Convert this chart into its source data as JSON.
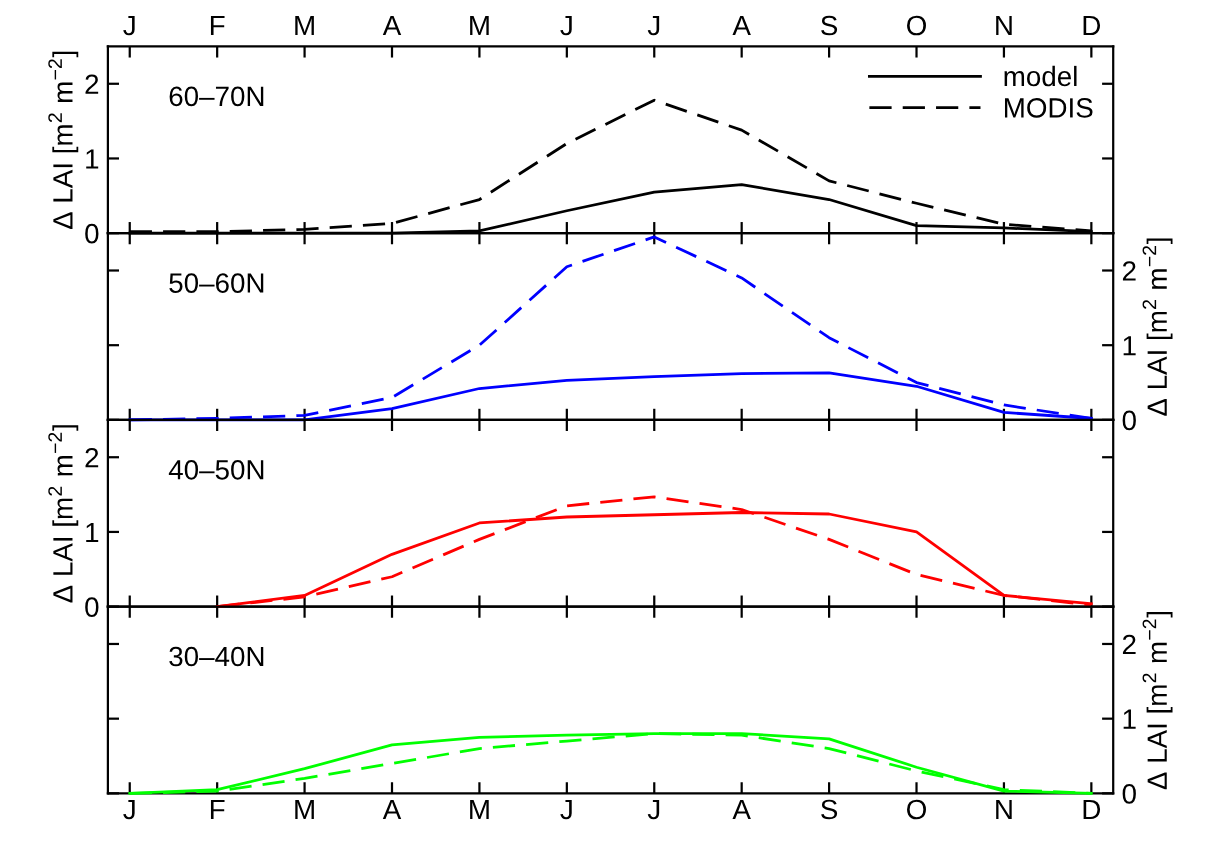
{
  "chart_data": [
    {
      "type": "line",
      "title": "60–70N",
      "ylabel": "Δ LAI [m$^{2}$ m$^{−2}$]",
      "categories": [
        "J",
        "F",
        "M",
        "A",
        "M",
        "J",
        "J",
        "A",
        "S",
        "O",
        "N",
        "D"
      ],
      "ylim": [
        0,
        2.5
      ],
      "yticks": [
        0,
        1,
        2
      ],
      "legend": "top right",
      "series": [
        {
          "name": "model",
          "color": "#000000",
          "line_style": "solid",
          "values": [
            0,
            0,
            0,
            0,
            0.03,
            0.3,
            0.55,
            0.65,
            0.45,
            0.1,
            0.07,
            0.02
          ]
        },
        {
          "name": "MODIS",
          "color": "#000000",
          "line_style": "dashed",
          "values": [
            0.02,
            0.02,
            0.05,
            0.13,
            0.45,
            1.2,
            1.78,
            1.38,
            0.7,
            0.4,
            0.12,
            0.03
          ]
        }
      ]
    },
    {
      "type": "line",
      "title": "50–60N",
      "ylabel": "Δ LAI [m$^{2}$ m$^{−2}$]",
      "categories": [
        null,
        null,
        null,
        null,
        null,
        null,
        null,
        null,
        null,
        null,
        null,
        null
      ],
      "ylim": [
        0,
        2.5
      ],
      "yticks": [
        0,
        1,
        2
      ],
      "tick_labels": "y",
      "series": [
        {
          "color": "#0000ff",
          "line_style": "solid",
          "values": [
            0,
            0,
            0,
            0.15,
            0.42,
            0.53,
            0.58,
            0.62,
            0.63,
            0.45,
            0.1,
            0.02
          ]
        },
        {
          "color": "#0000ff",
          "line_style": "dashed",
          "values": [
            0,
            0.02,
            0.06,
            0.3,
            1.0,
            2.05,
            2.45,
            1.9,
            1.1,
            0.5,
            0.2,
            0.02
          ]
        }
      ]
    },
    {
      "type": "line",
      "title": "40–50N",
      "ylabel": "Δ LAI [m$^{2}$ m$^{−2}$]",
      "categories": [
        null,
        null,
        null,
        null,
        null,
        null,
        null,
        null,
        null,
        null,
        null,
        null
      ],
      "ylim": [
        0,
        2.5
      ],
      "yticks": [
        0,
        1,
        2
      ],
      "tick_labels": "y",
      "series": [
        {
          "color": "#ff0000",
          "line_style": "solid",
          "values": [
            null,
            0,
            0.15,
            0.7,
            1.12,
            1.2,
            1.23,
            1.26,
            1.24,
            1.0,
            0.15,
            0.04
          ]
        },
        {
          "color": "#ff0000",
          "line_style": "dashed",
          "values": [
            null,
            0,
            0.13,
            0.4,
            0.9,
            1.35,
            1.47,
            1.3,
            0.9,
            0.43,
            0.15,
            0.02
          ]
        }
      ]
    },
    {
      "type": "line",
      "title": "30–40N",
      "ylabel": "Δ LAI [m$^{2}$ m$^{−2}$]",
      "categories": [
        "J",
        "F",
        "M",
        "A",
        "M",
        "J",
        "J",
        "A",
        "S",
        "O",
        "N",
        "D"
      ],
      "ylim": [
        0,
        2.5
      ],
      "yticks": [
        0,
        1,
        2
      ],
      "series": [
        {
          "color": "#00ff00",
          "line_style": "solid",
          "values": [
            0,
            0.05,
            0.33,
            0.65,
            0.75,
            0.78,
            0.8,
            0.8,
            0.73,
            0.35,
            0.03,
            0
          ]
        },
        {
          "color": "#00ff00",
          "line_style": "dashed",
          "values": [
            0,
            0.03,
            0.2,
            0.4,
            0.6,
            0.7,
            0.8,
            0.78,
            0.6,
            0.3,
            0.05,
            0
          ]
        }
      ]
    }
  ]
}
